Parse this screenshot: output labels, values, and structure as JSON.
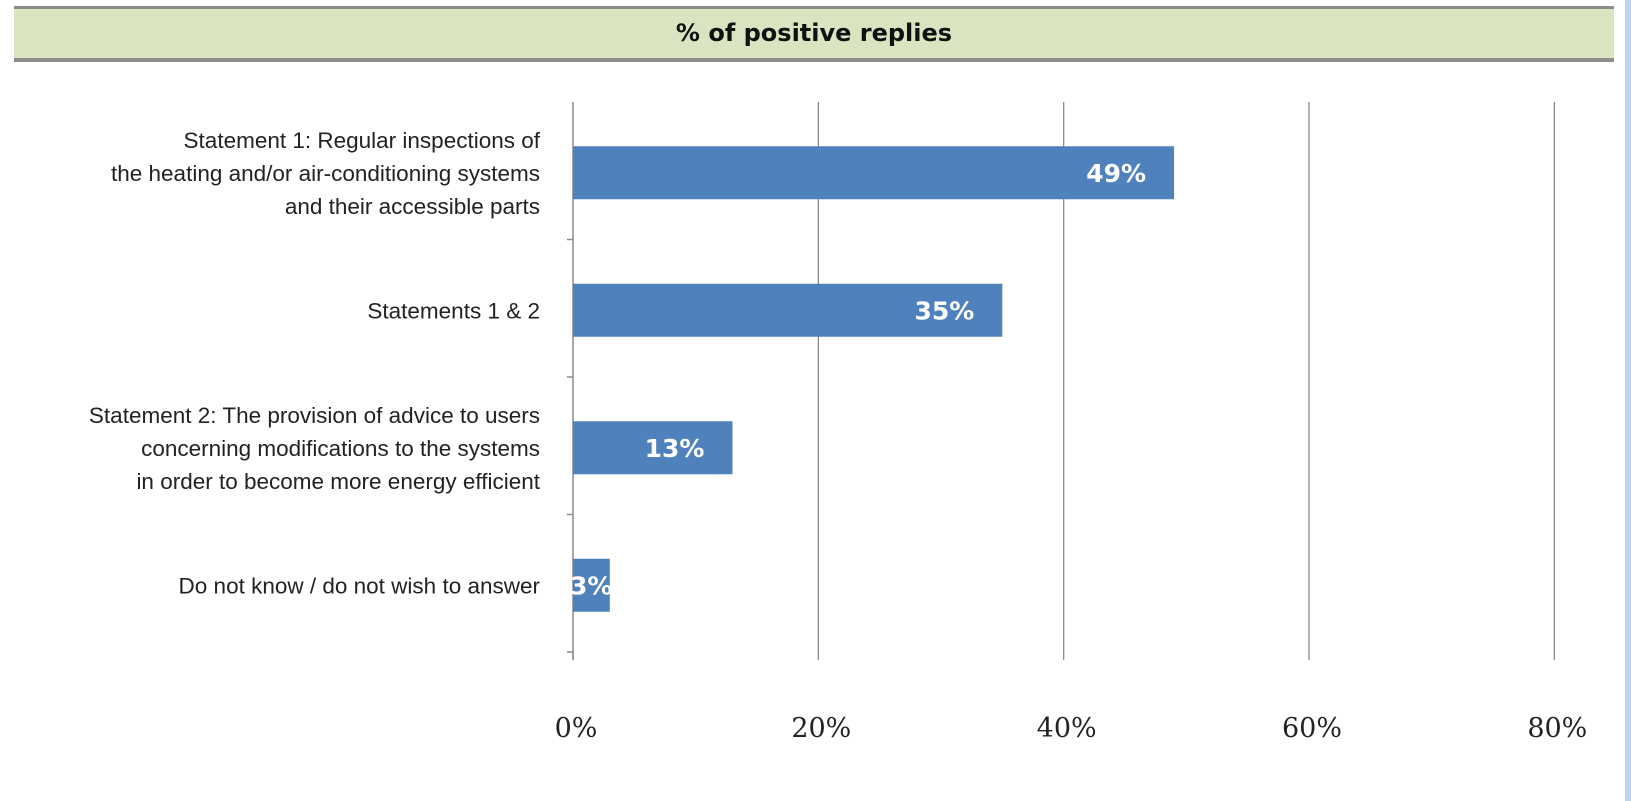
{
  "chart_data": {
    "type": "bar",
    "orientation": "horizontal",
    "title": "% of positive replies",
    "categories": [
      [
        "Statement 1:  Regular inspections of",
        "the heating and/or air-conditioning systems",
        "and their accessible parts"
      ],
      [
        "Statements 1 & 2"
      ],
      [
        "Statement 2: The provision of advice to users",
        "concerning modifications to the systems",
        "in order to become more energy efficient"
      ],
      [
        "Do not know / do not wish to answer"
      ]
    ],
    "values": [
      49,
      35,
      13,
      3
    ],
    "data_labels": [
      "49%",
      "35%",
      "13%",
      "3%"
    ],
    "xlim": [
      0,
      90
    ],
    "xticks": [
      0,
      20,
      40,
      60,
      80
    ],
    "xtick_labels": [
      "0%",
      "20%",
      "40%",
      "60%",
      "80%"
    ],
    "grid": "vertical",
    "bar_color": "#4f81bd",
    "title_band_color": "#d9e5c0"
  }
}
